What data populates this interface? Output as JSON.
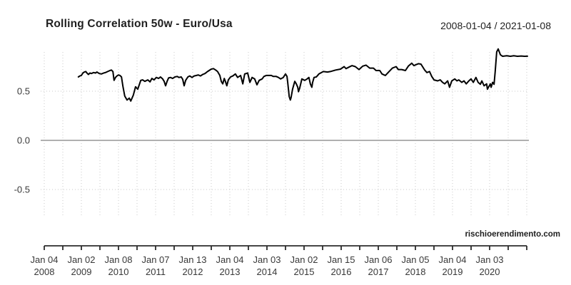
{
  "header": {
    "title": "Rolling Correlation 50w - Euro/Usa",
    "date_range": "2008-01-04 / 2021-01-08"
  },
  "watermark": "rischioerendimento.com",
  "colors": {
    "background": "#ffffff",
    "series_line": "#000000",
    "zero_line": "#b0b0b0",
    "grid_dotted": "#c9c9c9",
    "axis": "#2b2b2b",
    "tick_text": "#383838",
    "title_text": "#1f1f1f"
  },
  "chart_data": {
    "type": "line",
    "title": "Rolling Correlation 50w - Euro/Usa",
    "subtitle": "2008-01-04 / 2021-01-08",
    "xlabel": "",
    "ylabel": "",
    "xlim": [
      2008.0,
      2021.0
    ],
    "ylim": [
      -0.76,
      0.92
    ],
    "grid": "dotted vertical half-year lines and horizontal lines at ±0.5; solid gray zero line",
    "legend_position": "none",
    "y_ticks": [
      {
        "value": 0.5,
        "label": "0.5"
      },
      {
        "value": 0.0,
        "label": "0.0"
      },
      {
        "value": -0.5,
        "label": "-0.5"
      }
    ],
    "x_ticks": [
      {
        "year": 2008,
        "line1": "Jan 04",
        "line2": "2008"
      },
      {
        "year": 2009,
        "line1": "Jan 02",
        "line2": "2009"
      },
      {
        "year": 2010,
        "line1": "Jan 08",
        "line2": "2010"
      },
      {
        "year": 2011,
        "line1": "Jan 07",
        "line2": "2011"
      },
      {
        "year": 2012,
        "line1": "Jan 13",
        "line2": "2012"
      },
      {
        "year": 2013,
        "line1": "Jan 04",
        "line2": "2013"
      },
      {
        "year": 2014,
        "line1": "Jan 03",
        "line2": "2014"
      },
      {
        "year": 2015,
        "line1": "Jan 02",
        "line2": "2015"
      },
      {
        "year": 2016,
        "line1": "Jan 15",
        "line2": "2016"
      },
      {
        "year": 2017,
        "line1": "Jan 06",
        "line2": "2017"
      },
      {
        "year": 2018,
        "line1": "Jan 05",
        "line2": "2018"
      },
      {
        "year": 2019,
        "line1": "Jan 04",
        "line2": "2019"
      },
      {
        "year": 2020,
        "line1": "Jan 03",
        "line2": "2020"
      }
    ],
    "minor_tick_interval_years": 0.5,
    "series": [
      {
        "name": "rolling-correlation-50w-euro-usa",
        "color": "#000000",
        "points": [
          [
            2008.92,
            0.645
          ],
          [
            2008.96,
            0.655
          ],
          [
            2009.0,
            0.66
          ],
          [
            2009.04,
            0.685
          ],
          [
            2009.08,
            0.695
          ],
          [
            2009.12,
            0.7
          ],
          [
            2009.15,
            0.685
          ],
          [
            2009.19,
            0.67
          ],
          [
            2009.23,
            0.685
          ],
          [
            2009.27,
            0.68
          ],
          [
            2009.33,
            0.69
          ],
          [
            2009.38,
            0.685
          ],
          [
            2009.42,
            0.695
          ],
          [
            2009.48,
            0.68
          ],
          [
            2009.54,
            0.675
          ],
          [
            2009.6,
            0.685
          ],
          [
            2009.65,
            0.69
          ],
          [
            2009.71,
            0.7
          ],
          [
            2009.77,
            0.71
          ],
          [
            2009.81,
            0.715
          ],
          [
            2009.85,
            0.7
          ],
          [
            2009.88,
            0.61
          ],
          [
            2009.92,
            0.64
          ],
          [
            2009.96,
            0.655
          ],
          [
            2010.0,
            0.665
          ],
          [
            2010.04,
            0.66
          ],
          [
            2010.08,
            0.645
          ],
          [
            2010.12,
            0.55
          ],
          [
            2010.17,
            0.45
          ],
          [
            2010.23,
            0.41
          ],
          [
            2010.29,
            0.43
          ],
          [
            2010.33,
            0.4
          ],
          [
            2010.4,
            0.46
          ],
          [
            2010.46,
            0.545
          ],
          [
            2010.52,
            0.52
          ],
          [
            2010.6,
            0.61
          ],
          [
            2010.65,
            0.615
          ],
          [
            2010.71,
            0.6
          ],
          [
            2010.79,
            0.615
          ],
          [
            2010.85,
            0.595
          ],
          [
            2010.9,
            0.63
          ],
          [
            2010.96,
            0.615
          ],
          [
            2011.02,
            0.64
          ],
          [
            2011.08,
            0.63
          ],
          [
            2011.13,
            0.645
          ],
          [
            2011.19,
            0.625
          ],
          [
            2011.23,
            0.6
          ],
          [
            2011.27,
            0.555
          ],
          [
            2011.31,
            0.6
          ],
          [
            2011.35,
            0.635
          ],
          [
            2011.4,
            0.64
          ],
          [
            2011.46,
            0.63
          ],
          [
            2011.52,
            0.645
          ],
          [
            2011.58,
            0.65
          ],
          [
            2011.63,
            0.64
          ],
          [
            2011.69,
            0.645
          ],
          [
            2011.73,
            0.62
          ],
          [
            2011.77,
            0.555
          ],
          [
            2011.81,
            0.61
          ],
          [
            2011.87,
            0.645
          ],
          [
            2011.92,
            0.655
          ],
          [
            2011.98,
            0.64
          ],
          [
            2012.04,
            0.655
          ],
          [
            2012.1,
            0.66
          ],
          [
            2012.15,
            0.665
          ],
          [
            2012.21,
            0.655
          ],
          [
            2012.27,
            0.67
          ],
          [
            2012.33,
            0.68
          ],
          [
            2012.38,
            0.695
          ],
          [
            2012.44,
            0.71
          ],
          [
            2012.5,
            0.725
          ],
          [
            2012.56,
            0.73
          ],
          [
            2012.62,
            0.715
          ],
          [
            2012.67,
            0.7
          ],
          [
            2012.73,
            0.66
          ],
          [
            2012.77,
            0.6
          ],
          [
            2012.81,
            0.575
          ],
          [
            2012.85,
            0.63
          ],
          [
            2012.88,
            0.6
          ],
          [
            2012.92,
            0.555
          ],
          [
            2012.96,
            0.615
          ],
          [
            2013.02,
            0.645
          ],
          [
            2013.08,
            0.655
          ],
          [
            2013.15,
            0.675
          ],
          [
            2013.21,
            0.64
          ],
          [
            2013.29,
            0.66
          ],
          [
            2013.35,
            0.575
          ],
          [
            2013.4,
            0.675
          ],
          [
            2013.48,
            0.685
          ],
          [
            2013.54,
            0.59
          ],
          [
            2013.6,
            0.64
          ],
          [
            2013.67,
            0.625
          ],
          [
            2013.73,
            0.565
          ],
          [
            2013.79,
            0.61
          ],
          [
            2013.87,
            0.625
          ],
          [
            2013.92,
            0.65
          ],
          [
            2013.98,
            0.66
          ],
          [
            2014.06,
            0.66
          ],
          [
            2014.12,
            0.66
          ],
          [
            2014.17,
            0.65
          ],
          [
            2014.25,
            0.65
          ],
          [
            2014.31,
            0.64
          ],
          [
            2014.37,
            0.625
          ],
          [
            2014.44,
            0.64
          ],
          [
            2014.5,
            0.675
          ],
          [
            2014.54,
            0.65
          ],
          [
            2014.56,
            0.59
          ],
          [
            2014.6,
            0.445
          ],
          [
            2014.63,
            0.41
          ],
          [
            2014.65,
            0.435
          ],
          [
            2014.69,
            0.52
          ],
          [
            2014.73,
            0.575
          ],
          [
            2014.75,
            0.6
          ],
          [
            2014.79,
            0.575
          ],
          [
            2014.83,
            0.54
          ],
          [
            2014.85,
            0.495
          ],
          [
            2014.88,
            0.53
          ],
          [
            2014.92,
            0.59
          ],
          [
            2014.94,
            0.625
          ],
          [
            2015.02,
            0.61
          ],
          [
            2015.08,
            0.625
          ],
          [
            2015.13,
            0.64
          ],
          [
            2015.17,
            0.575
          ],
          [
            2015.21,
            0.54
          ],
          [
            2015.23,
            0.59
          ],
          [
            2015.27,
            0.64
          ],
          [
            2015.33,
            0.645
          ],
          [
            2015.4,
            0.675
          ],
          [
            2015.52,
            0.7
          ],
          [
            2015.63,
            0.695
          ],
          [
            2015.71,
            0.7
          ],
          [
            2015.85,
            0.715
          ],
          [
            2015.98,
            0.725
          ],
          [
            2016.08,
            0.75
          ],
          [
            2016.13,
            0.73
          ],
          [
            2016.21,
            0.745
          ],
          [
            2016.29,
            0.76
          ],
          [
            2016.38,
            0.75
          ],
          [
            2016.48,
            0.72
          ],
          [
            2016.58,
            0.755
          ],
          [
            2016.67,
            0.765
          ],
          [
            2016.77,
            0.735
          ],
          [
            2016.87,
            0.735
          ],
          [
            2016.94,
            0.71
          ],
          [
            2017.04,
            0.71
          ],
          [
            2017.1,
            0.675
          ],
          [
            2017.19,
            0.66
          ],
          [
            2017.29,
            0.7
          ],
          [
            2017.38,
            0.735
          ],
          [
            2017.48,
            0.75
          ],
          [
            2017.54,
            0.72
          ],
          [
            2017.63,
            0.72
          ],
          [
            2017.73,
            0.71
          ],
          [
            2017.81,
            0.755
          ],
          [
            2017.9,
            0.785
          ],
          [
            2017.96,
            0.76
          ],
          [
            2018.02,
            0.77
          ],
          [
            2018.08,
            0.78
          ],
          [
            2018.15,
            0.775
          ],
          [
            2018.25,
            0.715
          ],
          [
            2018.31,
            0.69
          ],
          [
            2018.38,
            0.7
          ],
          [
            2018.44,
            0.65
          ],
          [
            2018.5,
            0.615
          ],
          [
            2018.6,
            0.605
          ],
          [
            2018.67,
            0.615
          ],
          [
            2018.73,
            0.59
          ],
          [
            2018.79,
            0.575
          ],
          [
            2018.87,
            0.605
          ],
          [
            2018.92,
            0.54
          ],
          [
            2018.98,
            0.605
          ],
          [
            2019.06,
            0.625
          ],
          [
            2019.12,
            0.605
          ],
          [
            2019.17,
            0.615
          ],
          [
            2019.25,
            0.59
          ],
          [
            2019.31,
            0.605
          ],
          [
            2019.37,
            0.575
          ],
          [
            2019.44,
            0.605
          ],
          [
            2019.5,
            0.625
          ],
          [
            2019.56,
            0.59
          ],
          [
            2019.63,
            0.64
          ],
          [
            2019.69,
            0.59
          ],
          [
            2019.75,
            0.57
          ],
          [
            2019.79,
            0.605
          ],
          [
            2019.85,
            0.555
          ],
          [
            2019.92,
            0.575
          ],
          [
            2019.94,
            0.52
          ],
          [
            2020.02,
            0.575
          ],
          [
            2020.04,
            0.54
          ],
          [
            2020.08,
            0.59
          ],
          [
            2020.12,
            0.57
          ],
          [
            2020.15,
            0.7
          ],
          [
            2020.19,
            0.9
          ],
          [
            2020.23,
            0.93
          ],
          [
            2020.29,
            0.87
          ],
          [
            2020.35,
            0.855
          ],
          [
            2020.46,
            0.86
          ],
          [
            2020.56,
            0.855
          ],
          [
            2020.65,
            0.86
          ],
          [
            2020.75,
            0.855
          ],
          [
            2020.85,
            0.858
          ],
          [
            2020.94,
            0.855
          ],
          [
            2021.02,
            0.856
          ]
        ]
      }
    ]
  }
}
